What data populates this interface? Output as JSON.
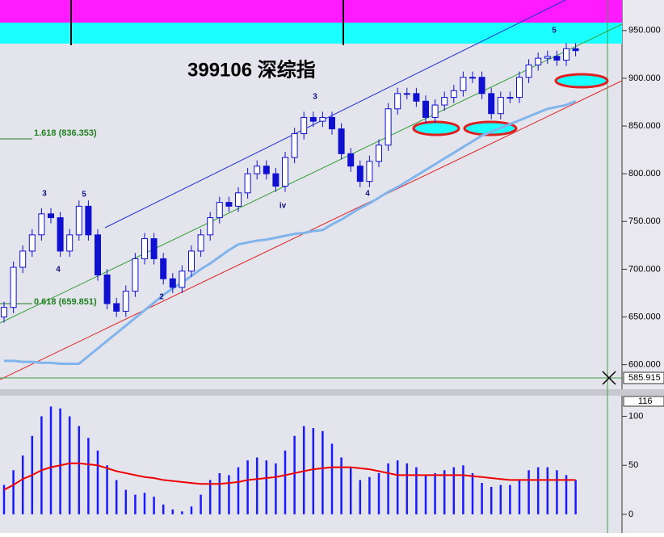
{
  "chart_data": [
    {
      "type": "candlestick",
      "title": "399106 深综指",
      "open": [
        650,
        660,
        702,
        719,
        736,
        758,
        754,
        719,
        736,
        766,
        736,
        694,
        664,
        656,
        677,
        711,
        732,
        711,
        690,
        681,
        698,
        719,
        736,
        754,
        770,
        766,
        780,
        800,
        808,
        800,
        787,
        817,
        842,
        859,
        855,
        859,
        847,
        821,
        808,
        792,
        813,
        830,
        868,
        884,
        884,
        876,
        859,
        872,
        880,
        887,
        901,
        901,
        884,
        863,
        880,
        880,
        901,
        914,
        921,
        923,
        919,
        931
      ],
      "high": [
        666,
        708,
        725,
        742,
        764,
        764,
        760,
        742,
        772,
        772,
        742,
        700,
        670,
        683,
        717,
        738,
        738,
        717,
        696,
        704,
        725,
        742,
        760,
        776,
        776,
        786,
        806,
        814,
        814,
        806,
        823,
        848,
        865,
        865,
        865,
        865,
        853,
        827,
        814,
        819,
        836,
        874,
        890,
        890,
        890,
        882,
        878,
        886,
        893,
        907,
        907,
        907,
        890,
        886,
        886,
        907,
        920,
        927,
        929,
        929,
        937,
        937
      ],
      "low": [
        644,
        654,
        696,
        713,
        730,
        748,
        713,
        713,
        730,
        730,
        688,
        658,
        650,
        650,
        671,
        705,
        705,
        684,
        675,
        675,
        692,
        713,
        730,
        748,
        760,
        760,
        774,
        794,
        794,
        781,
        781,
        811,
        836,
        849,
        849,
        841,
        815,
        802,
        786,
        786,
        807,
        824,
        862,
        878,
        870,
        853,
        853,
        866,
        874,
        881,
        895,
        878,
        857,
        857,
        874,
        874,
        895,
        908,
        915,
        913,
        913,
        923
      ],
      "close": [
        660,
        702,
        719,
        736,
        758,
        754,
        719,
        736,
        766,
        736,
        694,
        664,
        656,
        677,
        711,
        732,
        711,
        690,
        681,
        698,
        719,
        736,
        754,
        770,
        766,
        780,
        800,
        808,
        800,
        787,
        817,
        842,
        859,
        855,
        859,
        847,
        821,
        808,
        792,
        813,
        830,
        868,
        884,
        884,
        876,
        859,
        872,
        880,
        887,
        901,
        901,
        884,
        863,
        880,
        880,
        901,
        914,
        921,
        923,
        919,
        931,
        929
      ],
      "line_values": [
        604,
        604,
        603,
        603,
        602,
        602,
        601,
        601,
        601,
        609,
        617,
        625,
        633,
        641,
        649,
        657,
        665,
        673,
        680,
        686,
        693,
        700,
        706,
        713,
        720,
        726,
        728,
        730,
        731,
        733,
        735,
        737,
        738,
        740,
        741,
        747,
        752,
        758,
        764,
        769,
        775,
        781,
        786,
        792,
        798,
        804,
        810,
        816,
        822,
        828,
        834,
        840,
        844,
        848,
        852,
        856,
        860,
        864,
        868,
        870,
        872,
        876
      ],
      "color": "#1010d0",
      "line_color": "#7fb4ec",
      "ylim": [
        576,
        982
      ],
      "yticks": [
        {
          "value": 600,
          "label": "600.000"
        },
        {
          "value": 650,
          "label": "650.000"
        },
        {
          "value": 700,
          "label": "700.000"
        },
        {
          "value": 750,
          "label": "750.000"
        },
        {
          "value": 800,
          "label": "800.000"
        },
        {
          "value": 850,
          "label": "850.000"
        },
        {
          "value": 900,
          "label": "900.000"
        },
        {
          "value": 950,
          "label": "950.000"
        }
      ],
      "fib_labels": [
        "1.618 (836.353)",
        "0.618 (659.851)"
      ],
      "last_label": "585.915",
      "wave_labels": [
        "3",
        "5",
        "4",
        "2",
        "iv",
        "3",
        "4",
        "5"
      ]
    },
    {
      "type": "bar",
      "values": [
        30,
        45,
        60,
        80,
        100,
        110,
        108,
        100,
        90,
        78,
        65,
        50,
        35,
        25,
        20,
        22,
        18,
        10,
        5,
        3,
        8,
        20,
        35,
        42,
        40,
        48,
        55,
        58,
        55,
        52,
        65,
        80,
        90,
        88,
        85,
        72,
        58,
        48,
        35,
        38,
        42,
        52,
        55,
        52,
        48,
        40,
        42,
        45,
        48,
        50,
        42,
        32,
        28,
        30,
        30,
        35,
        45,
        48,
        48,
        45,
        40,
        35
      ],
      "line_values": [
        25,
        30,
        36,
        40,
        45,
        48,
        50,
        52,
        52,
        51,
        50,
        47,
        44,
        42,
        40,
        38,
        37,
        35,
        34,
        33,
        32,
        31,
        31,
        31,
        32,
        33,
        35,
        36,
        37,
        38,
        40,
        42,
        44,
        46,
        47,
        48,
        48,
        48,
        47,
        46,
        44,
        42,
        40,
        40,
        40,
        40,
        40,
        40,
        40,
        40,
        39,
        38,
        37,
        36,
        35,
        35,
        35,
        35,
        35,
        35,
        35,
        35
      ],
      "color": "#1a1aff",
      "line_color": "#ee0000",
      "ylim": [
        -19,
        121
      ],
      "yticks": [
        0,
        50,
        100
      ],
      "top_label": "116"
    }
  ]
}
